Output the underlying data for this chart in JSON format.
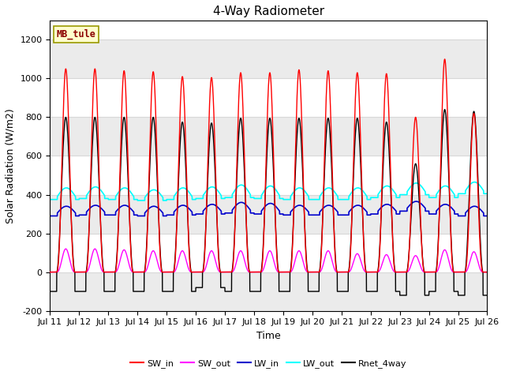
{
  "title": "4-Way Radiometer",
  "xlabel": "Time",
  "ylabel": "Solar Radiation (W/m2)",
  "ylim": [
    -200,
    1300
  ],
  "station_label": "MB_tule",
  "lines": {
    "SW_in": {
      "color": "#ff0000",
      "lw": 1.0
    },
    "SW_out": {
      "color": "#ff00ff",
      "lw": 1.0
    },
    "LW_in": {
      "color": "#0000cc",
      "lw": 1.2
    },
    "LW_out": {
      "color": "#00ffff",
      "lw": 1.2
    },
    "Rnet_4way": {
      "color": "#000000",
      "lw": 1.0
    }
  },
  "yticks": [
    -200,
    0,
    200,
    400,
    600,
    800,
    1000,
    1200
  ],
  "xtick_labels": [
    "Jul 11",
    "Jul 12",
    "Jul 13",
    "Jul 14",
    "Jul 15",
    "Jul 16",
    "Jul 17",
    "Jul 18",
    "Jul 19",
    "Jul 20",
    "Jul 21",
    "Jul 22",
    "Jul 23",
    "Jul 24",
    "Jul 25",
    "Jul 26"
  ],
  "n_days": 15,
  "SW_in_peak": [
    1050,
    1050,
    1040,
    1035,
    1010,
    1005,
    1030,
    1030,
    1045,
    1040,
    1030,
    1025,
    800,
    1100,
    820
  ],
  "SW_out_peak": [
    120,
    120,
    115,
    110,
    110,
    110,
    110,
    110,
    110,
    110,
    95,
    90,
    85,
    115,
    105
  ],
  "LW_in_base": [
    305,
    310,
    310,
    305,
    310,
    315,
    320,
    315,
    310,
    310,
    310,
    315,
    330,
    315,
    305
  ],
  "LW_out_base": [
    390,
    395,
    390,
    385,
    390,
    395,
    400,
    395,
    390,
    390,
    390,
    400,
    415,
    400,
    420
  ],
  "LW_in_amp": [
    35,
    35,
    35,
    35,
    35,
    35,
    40,
    40,
    35,
    35,
    35,
    35,
    35,
    35,
    35
  ],
  "LW_out_amp": [
    45,
    45,
    45,
    40,
    45,
    45,
    50,
    50,
    45,
    45,
    45,
    45,
    45,
    45,
    45
  ],
  "Rnet_peak": [
    800,
    800,
    800,
    800,
    775,
    770,
    795,
    795,
    795,
    795,
    795,
    775,
    560,
    840,
    830
  ],
  "Rnet_night": [
    -100,
    -100,
    -100,
    -100,
    -100,
    -80,
    -100,
    -100,
    -100,
    -100,
    -100,
    -100,
    -120,
    -100,
    -120
  ]
}
